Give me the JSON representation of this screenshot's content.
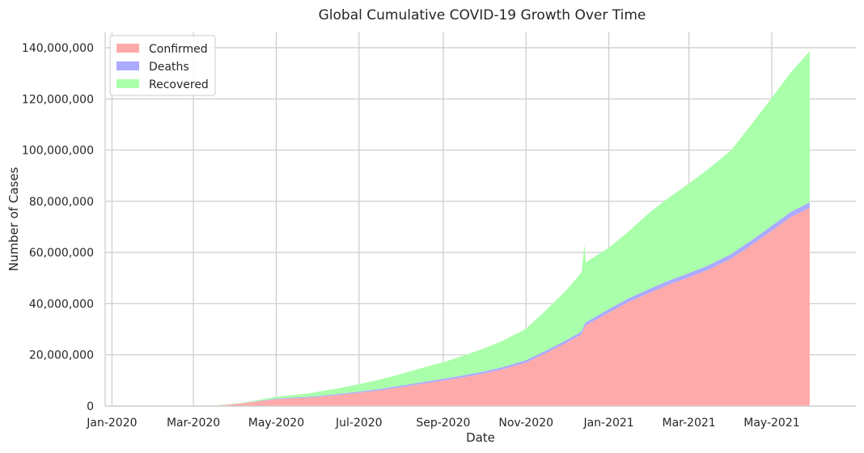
{
  "chart_data": {
    "type": "area",
    "stacked": true,
    "title": "Global Cumulative COVID-19 Growth Over Time",
    "xlabel": "Date",
    "ylabel": "Number of Cases",
    "x_ticks": [
      "Jan-2020",
      "Mar-2020",
      "May-2020",
      "Jul-2020",
      "Sep-2020",
      "Nov-2020",
      "Jan-2021",
      "Mar-2021",
      "May-2021"
    ],
    "x_tick_dates": [
      "2020-01-01",
      "2020-03-01",
      "2020-05-01",
      "2020-07-01",
      "2020-09-01",
      "2020-11-01",
      "2021-01-01",
      "2021-03-01",
      "2021-05-01"
    ],
    "xlim": [
      "2019-12-27",
      "2021-07-02"
    ],
    "y_ticks": [
      "0",
      "20,000,000",
      "40,000,000",
      "60,000,000",
      "80,000,000",
      "100,000,000",
      "120,000,000",
      "140,000,000"
    ],
    "ylim": [
      0,
      146000000
    ],
    "grid": true,
    "legend_position": "top-left",
    "x": [
      "2020-01-22",
      "2020-03-01",
      "2020-03-20",
      "2020-04-05",
      "2020-04-20",
      "2020-05-01",
      "2020-05-15",
      "2020-05-25",
      "2020-06-01",
      "2020-06-15",
      "2020-07-01",
      "2020-07-15",
      "2020-08-01",
      "2020-08-15",
      "2020-09-01",
      "2020-09-15",
      "2020-10-01",
      "2020-10-15",
      "2020-11-01",
      "2020-11-15",
      "2020-12-01",
      "2020-12-12",
      "2020-12-14",
      "2020-12-15",
      "2021-01-01",
      "2021-01-15",
      "2021-02-01",
      "2021-02-15",
      "2021-03-01",
      "2021-03-15",
      "2021-04-01",
      "2021-04-15",
      "2021-05-01",
      "2021-05-15",
      "2021-05-29"
    ],
    "series": [
      {
        "name": "Confirmed",
        "color": "#ffaaaa",
        "values": [
          500,
          85000,
          250000,
          1000000,
          2000000,
          2700000,
          3100000,
          3300000,
          3600000,
          4300000,
          5200000,
          6100000,
          7400000,
          8600000,
          10000000,
          11200000,
          12700000,
          14400000,
          17000000,
          20500000,
          24800000,
          28000000,
          30800000,
          31500000,
          36500000,
          40500000,
          44500000,
          47600000,
          50300000,
          53200000,
          57600000,
          62500000,
          68500000,
          73800000,
          77500000
        ]
      },
      {
        "name": "Deaths",
        "color": "#aaaaff",
        "values": [
          17,
          3000,
          12000,
          65000,
          150000,
          230000,
          290000,
          320000,
          350000,
          400000,
          450000,
          500000,
          560000,
          610000,
          670000,
          720000,
          790000,
          850000,
          930000,
          1000000,
          1050000,
          1150000,
          1200000,
          1220000,
          1380000,
          1480000,
          1560000,
          1610000,
          1660000,
          1700000,
          1780000,
          1850000,
          1950000,
          2050000,
          2130000
        ]
      },
      {
        "name": "Recovered",
        "color": "#aaffaa",
        "values": [
          30,
          40000,
          80000,
          150000,
          400000,
          700000,
          1000000,
          1300000,
          1700000,
          2200000,
          2900000,
          3600000,
          4600000,
          5500000,
          6500000,
          7600000,
          9000000,
          10300000,
          12300000,
          15600000,
          19600000,
          23200000,
          31000000,
          23400000,
          24000000,
          26000000,
          30000000,
          32500000,
          35000000,
          37600000,
          40500000,
          45000000,
          50000000,
          54500000,
          59000000
        ]
      }
    ]
  }
}
